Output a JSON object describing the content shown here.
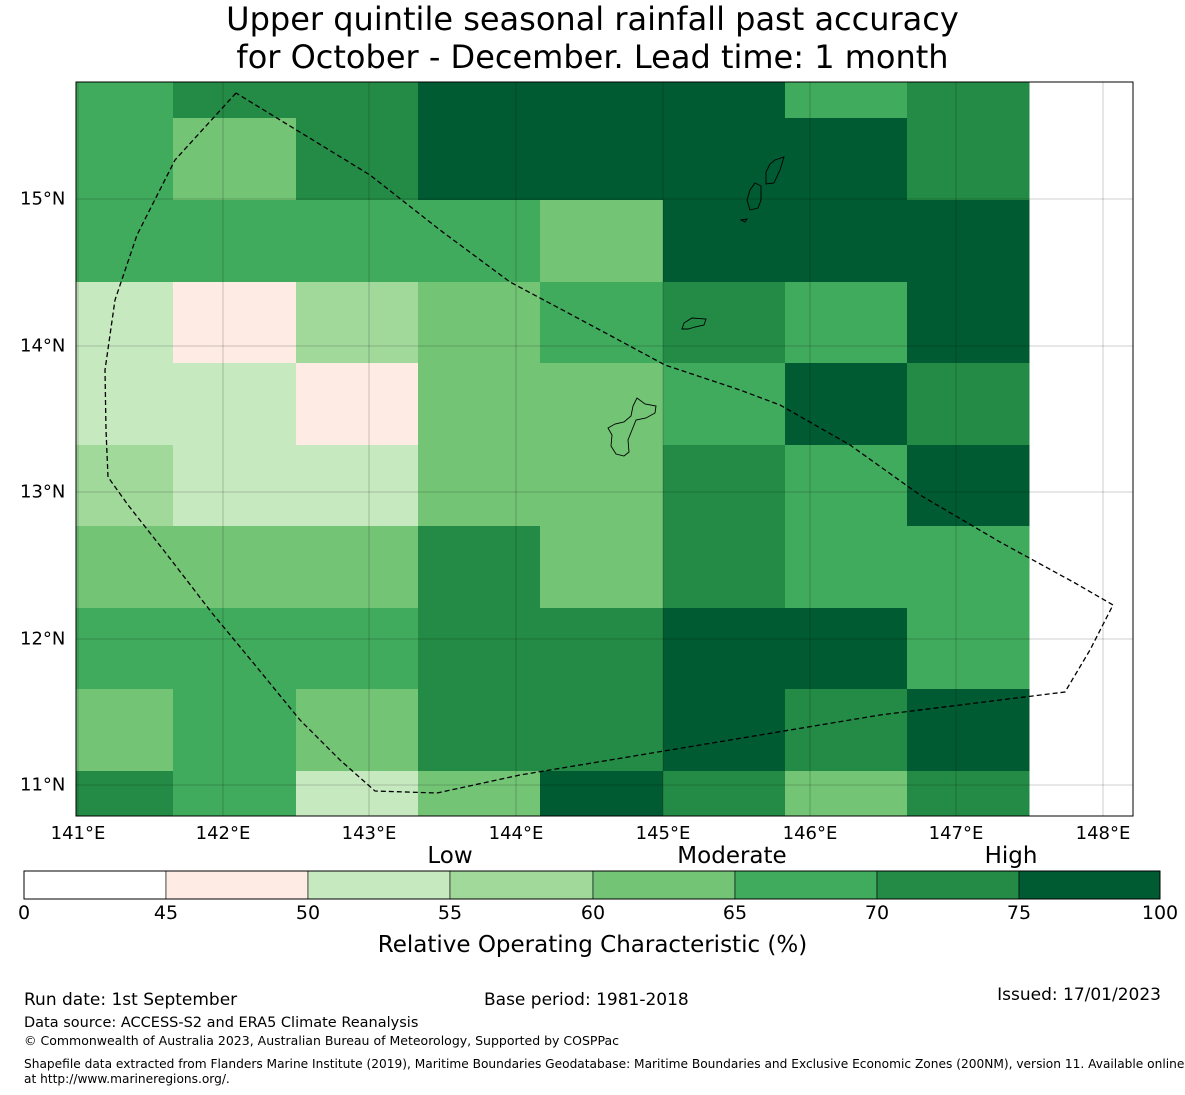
{
  "title_line1": "Upper quintile seasonal rainfall past accuracy",
  "title_line2": "for October - December. Lead time: 1 month",
  "map": {
    "x_ticks": [
      "141°E",
      "142°E",
      "143°E",
      "144°E",
      "145°E",
      "146°E",
      "147°E",
      "148°E"
    ],
    "y_ticks": [
      "15°N",
      "14°N",
      "13°N",
      "12°N",
      "11°N"
    ],
    "grid_rows": [
      [
        "65-70",
        "70-75",
        "70-75",
        "75-100",
        "75-100",
        "75-100",
        "65-70",
        "70-75"
      ],
      [
        "65-70",
        "60-65",
        "70-75",
        "75-100",
        "75-100",
        "75-100",
        "75-100",
        "70-75"
      ],
      [
        "65-70",
        "65-70",
        "65-70",
        "65-70",
        "60-65",
        "75-100",
        "75-100",
        "75-100"
      ],
      [
        "50-55",
        "45-50",
        "55-60",
        "60-65",
        "65-70",
        "70-75",
        "65-70",
        "75-100"
      ],
      [
        "50-55",
        "50-55",
        "45-50",
        "60-65",
        "60-65",
        "65-70",
        "75-100",
        "70-75"
      ],
      [
        "55-60",
        "50-55",
        "50-55",
        "60-65",
        "60-65",
        "70-75",
        "65-70",
        "75-100"
      ],
      [
        "60-65",
        "60-65",
        "60-65",
        "70-75",
        "60-65",
        "70-75",
        "65-70",
        "65-70"
      ],
      [
        "65-70",
        "65-70",
        "65-70",
        "70-75",
        "70-75",
        "75-100",
        "75-100",
        "65-70"
      ],
      [
        "60-65",
        "65-70",
        "60-65",
        "70-75",
        "70-75",
        "75-100",
        "70-75",
        "75-100"
      ],
      [
        "70-75",
        "65-70",
        "50-55",
        "60-65",
        "75-100",
        "70-75",
        "60-65",
        "70-75"
      ]
    ]
  },
  "colorbar": {
    "ticks": [
      "0",
      "45",
      "50",
      "55",
      "60",
      "65",
      "70",
      "75",
      "100"
    ],
    "colors": [
      "#ffffff",
      "#fdebe4",
      "#c7e9c0",
      "#a1d99b",
      "#74c476",
      "#41ab5d",
      "#238b45",
      "#005a32"
    ],
    "categories": [
      "Low",
      "Moderate",
      "High"
    ],
    "label": "Relative Operating Characteristic (%)"
  },
  "footer": {
    "run_date": "Run date: 1st September",
    "base_period": "Base period: 1981-2018",
    "issued": "Issued: 17/01/2023",
    "data_source": "Data source: ACCESS-S2 and ERA5 Climate Reanalysis",
    "copyright": "© Commonwealth of Australia 2023, Australian Bureau of Meteorology, Supported by COSPPac",
    "shapefile_line1": "Shapefile data extracted from Flanders Marine Institute (2019), Maritime Boundaries Geodatabase: Maritime Boundaries and Exclusive Economic Zones (200NM), version 11. Available online",
    "shapefile_line2": "at http://www.marineregions.org/."
  }
}
